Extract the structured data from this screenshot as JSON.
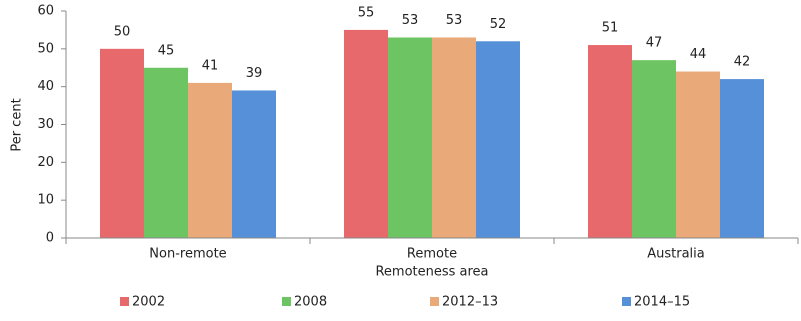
{
  "chart_data": {
    "type": "bar",
    "x_label": "Remoteness area",
    "y_label": "Per cent",
    "categories": [
      "Non-remote",
      "Remote",
      "Australia"
    ],
    "series": [
      {
        "name": "2002",
        "color": "#e8696b",
        "values": [
          50,
          55,
          51
        ]
      },
      {
        "name": "2008",
        "color": "#6cc462",
        "values": [
          45,
          53,
          47
        ]
      },
      {
        "name": "2012–13",
        "color": "#eaa978",
        "values": [
          41,
          53,
          44
        ]
      },
      {
        "name": "2014–15",
        "color": "#5590d9",
        "values": [
          39,
          52,
          42
        ]
      }
    ],
    "ylim": [
      0,
      60
    ],
    "yticks": [
      0,
      10,
      20,
      30,
      40,
      50,
      60
    ],
    "grid": false,
    "legend": "bottom"
  }
}
